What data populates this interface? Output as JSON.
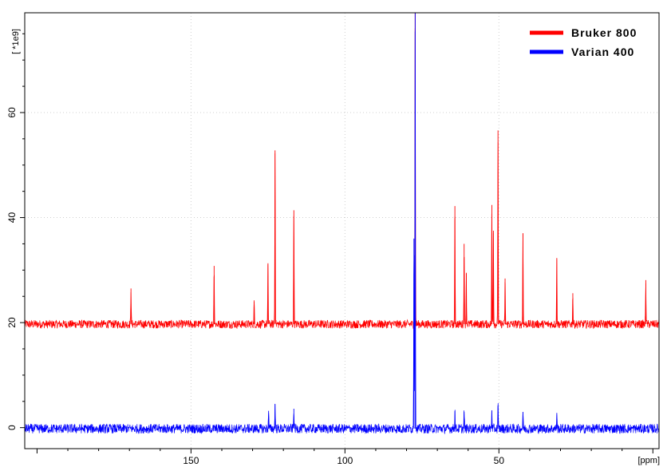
{
  "chart_data": {
    "type": "line",
    "title": "",
    "xlabel": "",
    "ylabel": "",
    "x_unit_label": "[ppm]",
    "y_unit_label": "[ *1e9]",
    "xlim": [
      204,
      -2
    ],
    "ylim": [
      -4,
      79
    ],
    "x_reversed": true,
    "x_ticks": [
      150,
      100,
      50
    ],
    "x_tick_labels": [
      "150",
      "100",
      "50"
    ],
    "y_ticks": [
      0,
      20,
      40,
      60
    ],
    "y_tick_labels": [
      "0",
      "20",
      "40",
      "60"
    ],
    "grid": true,
    "legend_position": "top-right",
    "series": [
      {
        "name": "Bruker 800",
        "color": "#ff0000",
        "baseline": 19.7,
        "noise": 0.8,
        "peaks": [
          {
            "x": 169.5,
            "y": 26.5
          },
          {
            "x": 142.5,
            "y": 30.8
          },
          {
            "x": 129.5,
            "y": 24.0
          },
          {
            "x": 125.0,
            "y": 31.3
          },
          {
            "x": 122.7,
            "y": 52.8
          },
          {
            "x": 116.6,
            "y": 41.4
          },
          {
            "x": 77.2,
            "y": 79.0
          },
          {
            "x": 64.3,
            "y": 42.2
          },
          {
            "x": 61.3,
            "y": 35.0
          },
          {
            "x": 60.6,
            "y": 29.4
          },
          {
            "x": 52.3,
            "y": 42.4
          },
          {
            "x": 51.8,
            "y": 37.5
          },
          {
            "x": 50.3,
            "y": 56.6
          },
          {
            "x": 48.0,
            "y": 28.4
          },
          {
            "x": 42.2,
            "y": 37.0
          },
          {
            "x": 31.2,
            "y": 32.3
          },
          {
            "x": 26.0,
            "y": 25.6
          },
          {
            "x": 2.3,
            "y": 28.1
          }
        ]
      },
      {
        "name": "Varian 400",
        "color": "#0000ff",
        "baseline": -0.2,
        "noise": 0.9,
        "peaks": [
          {
            "x": 124.8,
            "y": 3.2
          },
          {
            "x": 122.7,
            "y": 4.5
          },
          {
            "x": 116.6,
            "y": 3.6
          },
          {
            "x": 77.2,
            "y": 79.0
          },
          {
            "x": 77.6,
            "y": 36.0
          },
          {
            "x": 64.3,
            "y": 3.2
          },
          {
            "x": 61.3,
            "y": 3.0
          },
          {
            "x": 52.3,
            "y": 3.3
          },
          {
            "x": 50.3,
            "y": 4.2
          },
          {
            "x": 42.2,
            "y": 3.0
          },
          {
            "x": 31.2,
            "y": 2.8
          }
        ]
      }
    ]
  }
}
